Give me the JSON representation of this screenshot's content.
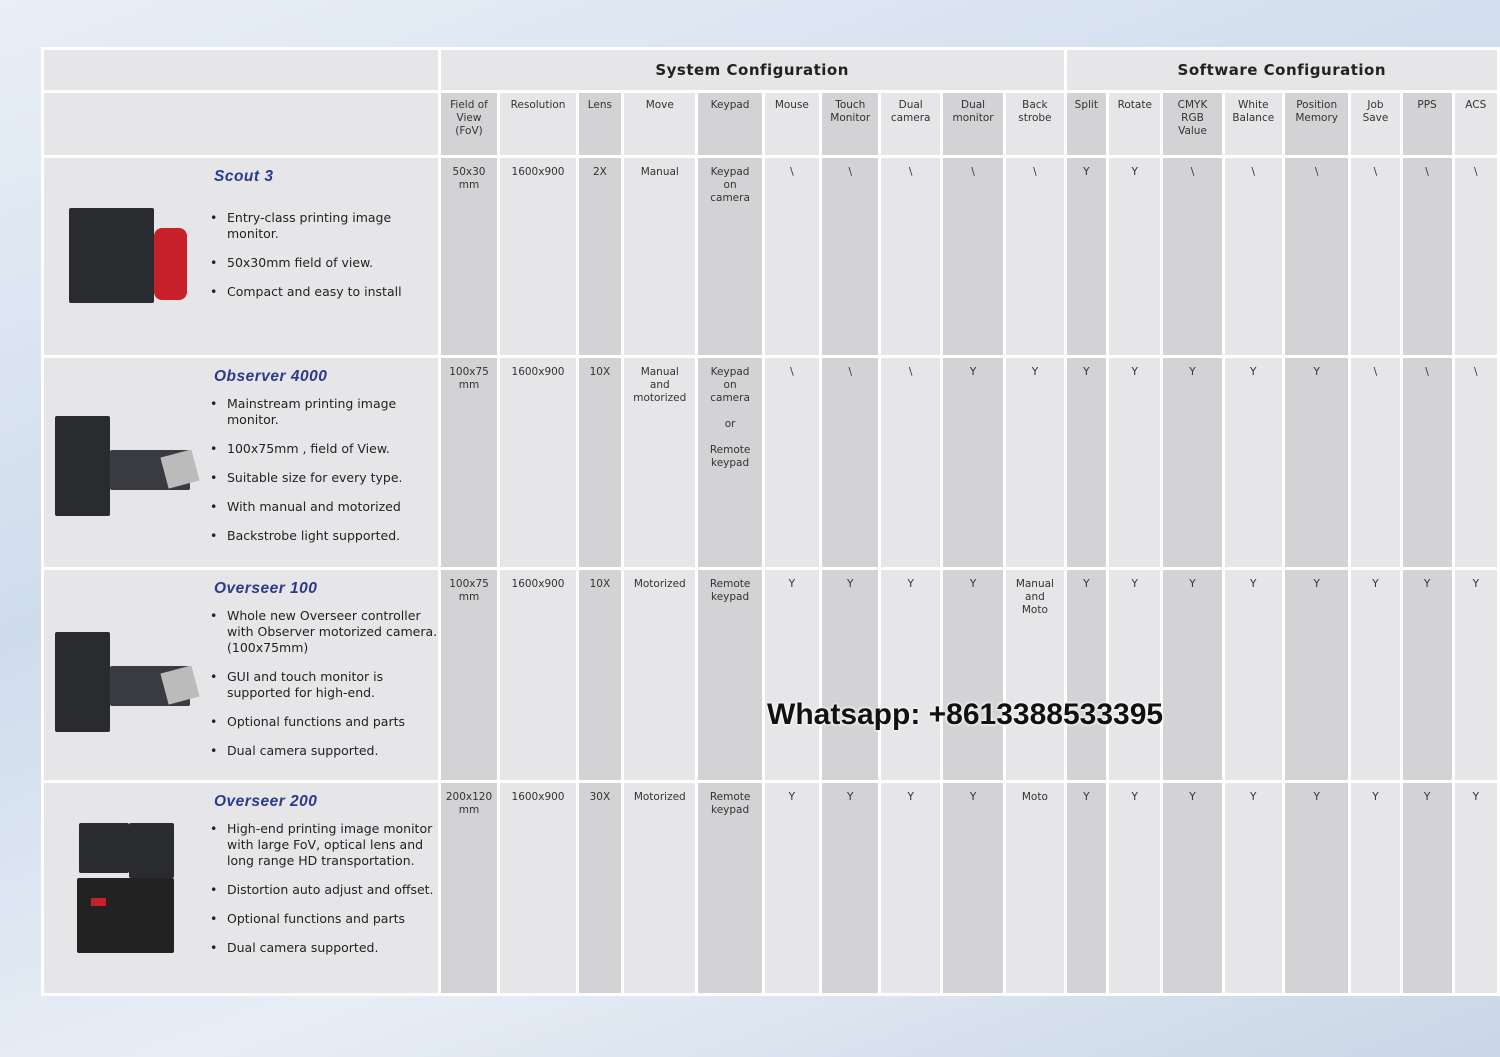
{
  "groups": {
    "system": "System Configuration",
    "software": "Software Configuration"
  },
  "columns": [
    "Field of\nView\n(FoV)",
    "Resolution",
    "Lens",
    "Move",
    "Keypad",
    "Mouse",
    "Touch\nMonitor",
    "Dual\ncamera",
    "Dual\nmonitor",
    "Back\nstrobe",
    "Split",
    "Rotate",
    "CMYK\nRGB\nValue",
    "White\nBalance",
    "Position\nMemory",
    "Job\nSave",
    "PPS",
    "ACS"
  ],
  "products": [
    {
      "name": "Scout 3",
      "bullets": [
        "Entry-class printing image monitor.",
        "50x30mm field of view.",
        "Compact and easy to install"
      ],
      "cells": [
        "50x30\nmm",
        "1600x900",
        "2X",
        "Manual",
        "Keypad\non\ncamera",
        "\\",
        "\\",
        "\\",
        "\\",
        "\\",
        "Y",
        "Y",
        "\\",
        "\\",
        "\\",
        "\\",
        "\\",
        "\\"
      ]
    },
    {
      "name": "Observer 4000",
      "bullets": [
        "Mainstream printing image monitor.",
        "100x75mm , field of View.",
        "Suitable size for every type.",
        "With manual and motorized",
        "Backstrobe light supported."
      ],
      "cells": [
        "100x75\nmm",
        "1600x900",
        "10X",
        "Manual\nand\nmotorized",
        "Keypad\non\ncamera\n\nor\n\nRemote\nkeypad",
        "\\",
        "\\",
        "\\",
        "Y",
        "Y",
        "Y",
        "Y",
        "Y",
        "Y",
        "Y",
        "\\",
        "\\",
        "\\"
      ]
    },
    {
      "name": "Overseer 100",
      "bullets": [
        "Whole new Overseer controller with Observer motorized camera.(100x75mm)",
        "GUI and touch monitor is supported for high-end.",
        "Optional functions and parts",
        "Dual camera supported."
      ],
      "cells": [
        "100x75\nmm",
        "1600x900",
        "10X",
        "Motorized",
        "Remote\nkeypad",
        "Y",
        "Y",
        "Y",
        "Y",
        "Manual\nand\nMoto",
        "Y",
        "Y",
        "Y",
        "Y",
        "Y",
        "Y",
        "Y",
        "Y"
      ]
    },
    {
      "name": "Overseer 200",
      "bullets": [
        "High-end printing image monitor with large FoV, optical lens and long range HD transportation.",
        "Distortion auto adjust and offset.",
        "Optional functions and parts",
        "Dual camera supported."
      ],
      "cells": [
        "200x120\nmm",
        "1600x900",
        "30X",
        "Motorized",
        "Remote\nkeypad",
        "Y",
        "Y",
        "Y",
        "Y",
        "Moto",
        "Y",
        "Y",
        "Y",
        "Y",
        "Y",
        "Y",
        "Y",
        "Y"
      ]
    }
  ],
  "watermark": "Whatsapp:  +8613388533395"
}
